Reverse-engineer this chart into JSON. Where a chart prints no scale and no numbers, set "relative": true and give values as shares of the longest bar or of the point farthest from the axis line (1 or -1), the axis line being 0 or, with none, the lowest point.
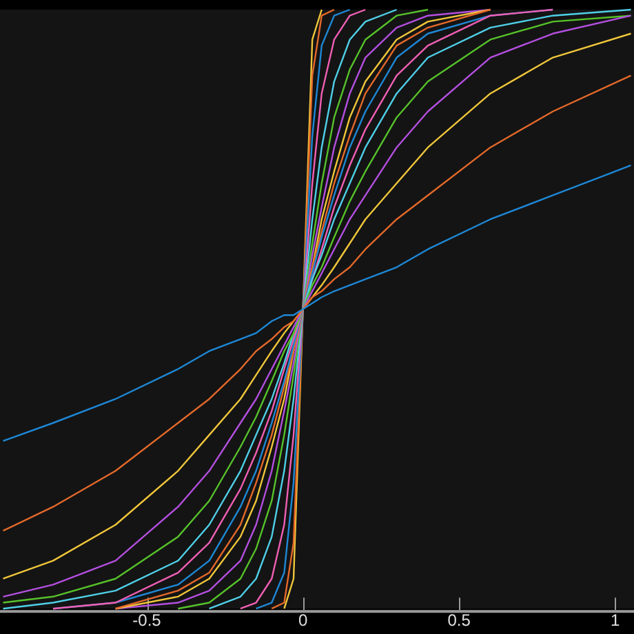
{
  "chart_data": {
    "type": "line",
    "relative": true,
    "xlim": [
      -0.97,
      1.06
    ],
    "xticks": [
      -0.5,
      0,
      0.5,
      1
    ],
    "grid": false,
    "legend": false,
    "marker": "none",
    "line_style": "solid",
    "x": [
      -0.96,
      -0.8,
      -0.6,
      -0.4,
      -0.3,
      -0.2,
      -0.15,
      -0.1,
      -0.06,
      -0.03,
      0,
      0.03,
      0.06,
      0.1,
      0.15,
      0.2,
      0.3,
      0.4,
      0.6,
      0.8,
      1.05
    ],
    "series": [
      {
        "color": "#1e88d6",
        "values": [
          0.28,
          0.31,
          0.35,
          0.4,
          0.43,
          0.45,
          0.46,
          0.48,
          0.49,
          0.49,
          0.5,
          0.51,
          0.52,
          0.53,
          0.54,
          0.55,
          0.57,
          0.6,
          0.65,
          0.69,
          0.74
        ]
      },
      {
        "color": "#e4692a",
        "values": [
          0.13,
          0.17,
          0.23,
          0.31,
          0.35,
          0.4,
          0.43,
          0.45,
          0.47,
          0.48,
          0.5,
          0.52,
          0.53,
          0.55,
          0.57,
          0.6,
          0.65,
          0.69,
          0.77,
          0.83,
          0.89
        ]
      },
      {
        "color": "#f0c63a",
        "values": [
          0.05,
          0.08,
          0.14,
          0.23,
          0.29,
          0.35,
          0.39,
          0.43,
          0.46,
          0.48,
          0.5,
          0.52,
          0.54,
          0.57,
          0.61,
          0.65,
          0.71,
          0.77,
          0.86,
          0.92,
          0.96
        ]
      },
      {
        "color": "#b44fe0",
        "values": [
          0.02,
          0.04,
          0.08,
          0.17,
          0.23,
          0.31,
          0.35,
          0.4,
          0.44,
          0.47,
          0.5,
          0.53,
          0.56,
          0.6,
          0.65,
          0.69,
          0.77,
          0.83,
          0.92,
          0.96,
          0.99
        ]
      },
      {
        "color": "#56c22a",
        "values": [
          0.01,
          0.02,
          0.05,
          0.12,
          0.18,
          0.27,
          0.32,
          0.38,
          0.43,
          0.46,
          0.5,
          0.54,
          0.57,
          0.62,
          0.68,
          0.73,
          0.82,
          0.88,
          0.95,
          0.98,
          0.99
        ]
      },
      {
        "color": "#4fd0e8",
        "values": [
          0,
          0.01,
          0.03,
          0.08,
          0.14,
          0.23,
          0.29,
          0.35,
          0.41,
          0.46,
          0.5,
          0.55,
          0.59,
          0.65,
          0.71,
          0.77,
          0.86,
          0.92,
          0.97,
          0.99,
          1
        ]
      },
      {
        "color": "#f05fb5",
        "values": [
          null,
          0,
          0.01,
          0.06,
          0.11,
          0.2,
          0.26,
          0.33,
          0.4,
          0.45,
          0.5,
          0.55,
          0.6,
          0.67,
          0.74,
          0.8,
          0.89,
          0.94,
          0.99,
          1,
          null
        ]
      },
      {
        "color": "#1e88d6",
        "values": [
          null,
          0,
          0.01,
          0.04,
          0.08,
          0.17,
          0.23,
          0.31,
          0.38,
          0.44,
          0.5,
          0.56,
          0.62,
          0.69,
          0.77,
          0.83,
          0.92,
          0.96,
          0.99,
          1,
          null
        ]
      },
      {
        "color": "#e4692a",
        "values": [
          null,
          null,
          0,
          0.03,
          0.06,
          0.14,
          0.21,
          0.29,
          0.37,
          0.43,
          0.5,
          0.57,
          0.63,
          0.71,
          0.79,
          0.86,
          0.94,
          0.97,
          1,
          null,
          null
        ]
      },
      {
        "color": "#f0c63a",
        "values": [
          null,
          null,
          0,
          0.02,
          0.05,
          0.12,
          0.18,
          0.27,
          0.35,
          0.43,
          0.5,
          0.57,
          0.65,
          0.73,
          0.82,
          0.88,
          0.95,
          0.98,
          1,
          null,
          null
        ]
      },
      {
        "color": "#b44fe0",
        "values": [
          null,
          null,
          0,
          0.01,
          0.03,
          0.08,
          0.14,
          0.23,
          0.33,
          0.41,
          0.5,
          0.59,
          0.67,
          0.77,
          0.86,
          0.92,
          0.97,
          0.99,
          1,
          null,
          null
        ]
      },
      {
        "color": "#56c22a",
        "values": [
          null,
          null,
          null,
          0,
          0.01,
          0.05,
          0.1,
          0.18,
          0.29,
          0.39,
          0.5,
          0.61,
          0.71,
          0.82,
          0.9,
          0.95,
          0.99,
          1,
          null,
          null,
          null
        ]
      },
      {
        "color": "#4fd0e8",
        "values": [
          null,
          null,
          null,
          null,
          0,
          0.02,
          0.05,
          0.12,
          0.23,
          0.35,
          0.5,
          0.65,
          0.77,
          0.88,
          0.95,
          0.98,
          1,
          null,
          null,
          null,
          null
        ]
      },
      {
        "color": "#f05fb5",
        "values": [
          null,
          null,
          null,
          null,
          null,
          0,
          0.01,
          0.05,
          0.14,
          0.29,
          0.5,
          0.71,
          0.86,
          0.95,
          0.99,
          1,
          null,
          null,
          null,
          null,
          null
        ]
      },
      {
        "color": "#1e88d6",
        "values": [
          null,
          null,
          null,
          null,
          null,
          null,
          0,
          0.01,
          0.06,
          0.21,
          0.5,
          0.79,
          0.94,
          0.99,
          1,
          null,
          null,
          null,
          null,
          null,
          null
        ]
      },
      {
        "color": "#e4692a",
        "values": [
          null,
          null,
          null,
          null,
          null,
          null,
          null,
          0,
          0.01,
          0.11,
          0.5,
          0.89,
          0.99,
          1,
          null,
          null,
          null,
          null,
          null,
          null,
          null
        ]
      },
      {
        "color": "#f0c63a",
        "values": [
          null,
          null,
          null,
          null,
          null,
          null,
          null,
          null,
          0,
          0.05,
          0.5,
          0.95,
          1,
          null,
          null,
          null,
          null,
          null,
          null,
          null,
          null
        ]
      }
    ]
  }
}
